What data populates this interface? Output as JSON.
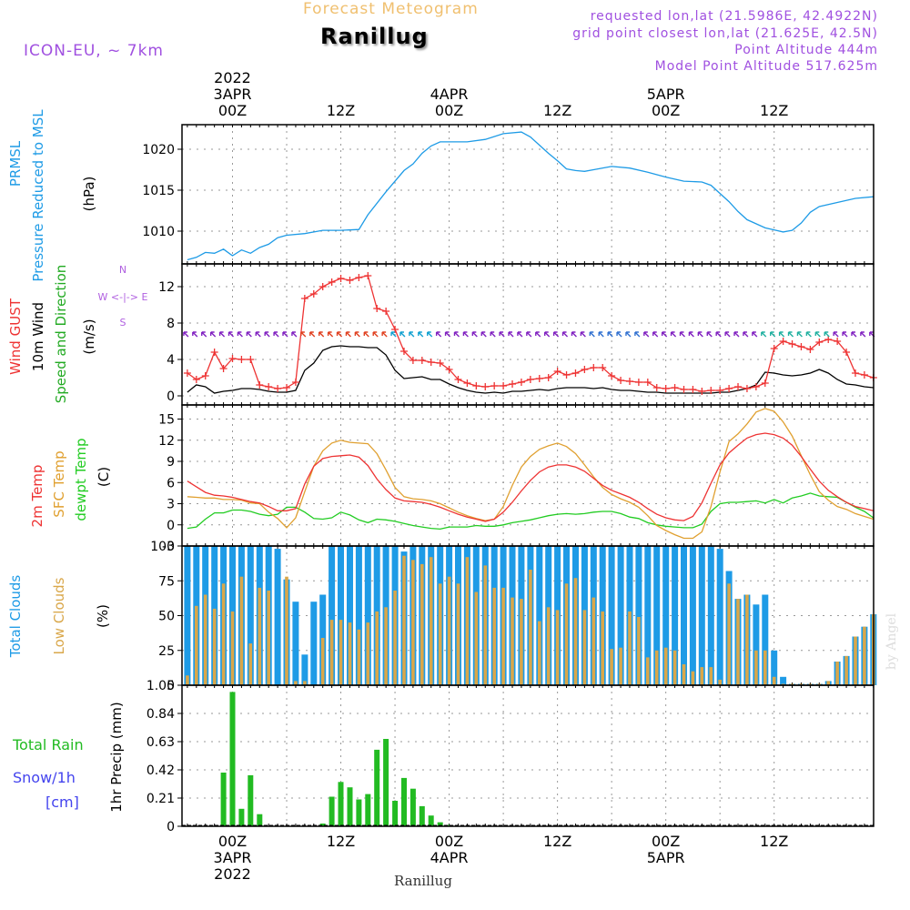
{
  "header": {
    "subtitle": "Forecast Meteogram",
    "title": "Ranillug",
    "model": "ICON-EU, ~ 7km",
    "requested": "requested lon,lat (21.5986E, 42.4922N)",
    "gridpoint": "grid point closest lon,lat (21.625E, 42.5N)",
    "point_alt": "Point Altitude 444m",
    "model_alt": "Model Point Altitude 517.625m",
    "bottom_title": "Ranillug",
    "watermark": "by Angel"
  },
  "time_axis": {
    "top_labels": [
      {
        "h": 0,
        "lines": [
          "2022",
          "3APR",
          "00Z"
        ]
      },
      {
        "h": 12,
        "lines": [
          "12Z"
        ]
      },
      {
        "h": 24,
        "lines": [
          "4APR",
          "00Z"
        ]
      },
      {
        "h": 36,
        "lines": [
          "12Z"
        ]
      },
      {
        "h": 48,
        "lines": [
          "5APR",
          "00Z"
        ]
      },
      {
        "h": 60,
        "lines": [
          "12Z"
        ]
      }
    ],
    "bottom_labels": [
      {
        "h": 0,
        "lines": [
          "00Z",
          "3APR",
          "2022"
        ]
      },
      {
        "h": 12,
        "lines": [
          "12Z"
        ]
      },
      {
        "h": 24,
        "lines": [
          "00Z",
          "4APR"
        ]
      },
      {
        "h": 36,
        "lines": [
          "12Z"
        ]
      },
      {
        "h": 48,
        "lines": [
          "00Z",
          "5APR"
        ]
      },
      {
        "h": 60,
        "lines": [
          "12Z"
        ]
      }
    ]
  },
  "colors": {
    "pressure": "#1e9be6",
    "gust": "#ee3333",
    "wind": "#000000",
    "dir_label": "#22aa22",
    "temp2m": "#ee3333",
    "sfc": "#e0a030",
    "dewpt": "#22cc22",
    "cloud_total": "#1e9be6",
    "cloud_low": "#d9a74a",
    "rain": "#22bb22",
    "snow": "#4444ee",
    "compass": "#b060e0",
    "header_purple": "#a050e0",
    "header_orange": "#f0c070"
  },
  "panels": {
    "pressure": {
      "labels": [
        "PRMSL",
        "Pressure Reduced to MSL"
      ],
      "unit": "(hPa)"
    },
    "wind": {
      "labels": [
        "Wind GUST",
        "10m Wind",
        "Speed and Direction"
      ],
      "unit": "(m/s)",
      "compass": [
        "N",
        "W <-|-> E",
        "S"
      ]
    },
    "temp": {
      "labels": [
        "2m Temp",
        "SFC Temp",
        "dewpt Temp"
      ],
      "unit": "(C)"
    },
    "clouds": {
      "labels": [
        "Total Clouds",
        "Low Clouds"
      ],
      "unit": "(%)"
    },
    "precip": {
      "labels": [
        "Total  Rain",
        "Snow/1h",
        "[cm]"
      ],
      "ylabel": "1hr Precip (mm)"
    }
  },
  "chart_data": [
    {
      "type": "line",
      "name": "pressure",
      "x_hours": [
        -5,
        -4,
        -3,
        -2,
        -1,
        0,
        1,
        2,
        3,
        4,
        5,
        6,
        8,
        10,
        12,
        14,
        15,
        17,
        19,
        20,
        21,
        22,
        23,
        24,
        26,
        28,
        30,
        32,
        33,
        35,
        36,
        37,
        38,
        39,
        40,
        42,
        44,
        46,
        48,
        50,
        52,
        53,
        55,
        56,
        57,
        59,
        61,
        62,
        63,
        64,
        65,
        67,
        69,
        71
      ],
      "y": [
        1006.5,
        1006.8,
        1007.4,
        1007.3,
        1007.8,
        1007.0,
        1007.7,
        1007.3,
        1008.0,
        1008.4,
        1009.2,
        1009.5,
        1009.7,
        1010.1,
        1010.1,
        1010.2,
        1012.0,
        1014.8,
        1017.4,
        1018.2,
        1019.5,
        1020.4,
        1020.9,
        1020.9,
        1020.9,
        1021.2,
        1021.9,
        1022.1,
        1021.5,
        1019.5,
        1018.6,
        1017.6,
        1017.4,
        1017.3,
        1017.5,
        1017.9,
        1017.7,
        1017.2,
        1016.6,
        1016.1,
        1016.0,
        1015.6,
        1013.6,
        1012.4,
        1011.4,
        1010.4,
        1009.9,
        1010.1,
        1011.0,
        1012.3,
        1013.0,
        1013.5,
        1014.0,
        1014.2
      ],
      "ylim": [
        1006,
        1023
      ],
      "yticks": [
        1010,
        1015,
        1020
      ]
    },
    {
      "type": "line",
      "name": "wind",
      "x_hours": [
        -5,
        -4,
        -3,
        -2,
        -1,
        0,
        1,
        2,
        3,
        4,
        5,
        6,
        7,
        8,
        9,
        10,
        11,
        12,
        13,
        14,
        15,
        16,
        17,
        18,
        19,
        20,
        21,
        22,
        23,
        24,
        25,
        26,
        27,
        28,
        29,
        30,
        31,
        32,
        33,
        34,
        35,
        36,
        37,
        38,
        39,
        40,
        41,
        42,
        43,
        44,
        45,
        46,
        47,
        48,
        49,
        50,
        51,
        52,
        53,
        54,
        55,
        56,
        57,
        58,
        59,
        60,
        61,
        62,
        63,
        64,
        65,
        66,
        67,
        68,
        69,
        70,
        71
      ],
      "series": [
        {
          "name": "Wind GUST",
          "values": [
            2.5,
            1.8,
            2.2,
            4.8,
            3.0,
            4.1,
            4.0,
            4.0,
            1.2,
            1.0,
            0.8,
            0.9,
            1.5,
            10.7,
            11.2,
            12.0,
            12.5,
            12.9,
            12.7,
            13.0,
            13.2,
            9.6,
            9.3,
            7.3,
            4.9,
            3.9,
            3.9,
            3.7,
            3.6,
            2.9,
            1.8,
            1.4,
            1.1,
            1.0,
            1.1,
            1.1,
            1.3,
            1.5,
            1.8,
            1.9,
            2.0,
            2.7,
            2.3,
            2.5,
            2.9,
            3.1,
            3.1,
            2.2,
            1.7,
            1.6,
            1.5,
            1.5,
            0.9,
            0.8,
            0.9,
            0.7,
            0.7,
            0.5,
            0.6,
            0.6,
            0.8,
            1.0,
            0.8,
            1.0,
            1.4,
            5.2,
            6.0,
            5.7,
            5.4,
            5.1,
            5.9,
            6.2,
            6.0,
            4.8,
            2.5,
            2.3,
            2.0
          ]
        },
        {
          "name": "10m Wind",
          "values": [
            0.4,
            1.2,
            1.0,
            0.3,
            0.5,
            0.6,
            0.8,
            0.8,
            0.7,
            0.5,
            0.4,
            0.4,
            0.6,
            2.8,
            3.6,
            5.0,
            5.4,
            5.5,
            5.4,
            5.4,
            5.3,
            5.3,
            4.5,
            2.8,
            1.9,
            2.0,
            2.1,
            1.8,
            1.8,
            1.3,
            0.9,
            0.6,
            0.4,
            0.3,
            0.4,
            0.3,
            0.5,
            0.5,
            0.6,
            0.7,
            0.6,
            0.8,
            0.9,
            0.9,
            0.9,
            0.8,
            0.9,
            0.7,
            0.6,
            0.6,
            0.5,
            0.4,
            0.4,
            0.3,
            0.3,
            0.3,
            0.3,
            0.3,
            0.3,
            0.4,
            0.4,
            0.6,
            0.8,
            1.2,
            2.6,
            2.5,
            2.3,
            2.2,
            2.3,
            2.5,
            2.9,
            2.5,
            1.8,
            1.3,
            1.2,
            1.0,
            0.9
          ]
        }
      ],
      "ylim": [
        -1,
        14.5
      ],
      "yticks": [
        0,
        4,
        8,
        12
      ]
    },
    {
      "type": "line",
      "name": "temperature",
      "x_hours": [
        -5,
        -4,
        -3,
        -2,
        -1,
        0,
        1,
        2,
        3,
        4,
        5,
        6,
        7,
        8,
        9,
        10,
        11,
        12,
        13,
        14,
        15,
        16,
        17,
        18,
        19,
        20,
        21,
        22,
        23,
        24,
        25,
        26,
        27,
        28,
        29,
        30,
        31,
        32,
        33,
        34,
        35,
        36,
        37,
        38,
        39,
        40,
        41,
        42,
        43,
        44,
        45,
        46,
        47,
        48,
        49,
        50,
        51,
        52,
        53,
        54,
        55,
        56,
        57,
        58,
        59,
        60,
        61,
        62,
        63,
        64,
        65,
        66,
        67,
        68,
        69,
        70,
        71
      ],
      "series": [
        {
          "name": "2m Temp",
          "values": [
            6.2,
            5.4,
            4.6,
            4.2,
            4.1,
            3.9,
            3.6,
            3.3,
            3.1,
            2.6,
            2.0,
            2.0,
            2.3,
            5.8,
            8.3,
            9.4,
            9.7,
            9.8,
            9.9,
            9.6,
            8.4,
            6.5,
            5.0,
            3.8,
            3.4,
            3.3,
            3.2,
            2.9,
            2.5,
            2.0,
            1.5,
            1.1,
            0.8,
            0.5,
            0.8,
            1.8,
            3.2,
            4.8,
            6.3,
            7.5,
            8.2,
            8.5,
            8.5,
            8.2,
            7.6,
            6.6,
            5.6,
            4.9,
            4.4,
            3.9,
            3.2,
            2.3,
            1.5,
            1.0,
            0.7,
            0.6,
            1.2,
            3.1,
            5.9,
            8.5,
            10.2,
            11.3,
            12.3,
            12.8,
            13.0,
            12.8,
            12.3,
            11.3,
            9.7,
            7.9,
            6.2,
            4.9,
            4.0,
            3.2,
            2.6,
            2.3,
            2.0
          ]
        },
        {
          "name": "SFC Temp",
          "values": [
            4.0,
            3.9,
            3.8,
            3.8,
            3.6,
            3.6,
            3.5,
            3.1,
            3.0,
            1.8,
            0.9,
            -0.4,
            1.0,
            4.7,
            8.3,
            10.5,
            11.6,
            12.0,
            11.7,
            11.6,
            11.5,
            10.1,
            7.8,
            5.3,
            4.0,
            3.7,
            3.6,
            3.4,
            3.0,
            2.4,
            1.8,
            1.3,
            0.9,
            0.6,
            0.8,
            2.6,
            5.6,
            8.2,
            9.7,
            10.7,
            11.2,
            11.6,
            11.1,
            10.1,
            8.5,
            6.8,
            5.3,
            4.3,
            3.7,
            3.2,
            2.5,
            1.3,
            -0.1,
            -0.8,
            -1.4,
            -1.9,
            -1.9,
            -1.0,
            2.6,
            7.5,
            11.8,
            12.9,
            14.3,
            16.0,
            16.5,
            16.1,
            14.6,
            12.6,
            9.8,
            7.1,
            4.7,
            3.5,
            2.6,
            2.2,
            1.6,
            1.2,
            0.8
          ]
        },
        {
          "name": "dewpt Temp",
          "values": [
            -0.5,
            -0.3,
            0.8,
            1.7,
            1.7,
            2.1,
            2.1,
            1.9,
            1.5,
            1.3,
            1.5,
            2.5,
            2.5,
            1.8,
            0.9,
            0.8,
            1.0,
            1.8,
            1.4,
            0.7,
            0.3,
            0.8,
            0.7,
            0.5,
            0.2,
            -0.1,
            -0.3,
            -0.5,
            -0.6,
            -0.3,
            -0.3,
            -0.3,
            -0.1,
            -0.2,
            -0.2,
            0.0,
            0.3,
            0.5,
            0.7,
            1.0,
            1.3,
            1.5,
            1.6,
            1.5,
            1.6,
            1.8,
            1.9,
            1.9,
            1.6,
            1.1,
            0.9,
            0.3,
            0.0,
            -0.2,
            -0.3,
            -0.4,
            -0.4,
            0.1,
            1.9,
            3.0,
            3.2,
            3.2,
            3.3,
            3.4,
            3.1,
            3.6,
            3.1,
            3.8,
            4.1,
            4.5,
            4.1,
            4.0,
            3.9,
            3.2,
            2.5,
            1.9,
            1.0
          ]
        }
      ],
      "ylim": [
        -3,
        17
      ],
      "yticks": [
        -3,
        0,
        3,
        6,
        9,
        12,
        15
      ]
    },
    {
      "type": "bar",
      "name": "clouds",
      "x_hours": [
        -5,
        -4,
        -3,
        -2,
        -1,
        0,
        1,
        2,
        3,
        4,
        5,
        6,
        7,
        8,
        9,
        10,
        11,
        12,
        13,
        14,
        15,
        16,
        17,
        18,
        19,
        20,
        21,
        22,
        23,
        24,
        25,
        26,
        27,
        28,
        29,
        30,
        31,
        32,
        33,
        34,
        35,
        36,
        37,
        38,
        39,
        40,
        41,
        42,
        43,
        44,
        45,
        46,
        47,
        48,
        49,
        50,
        51,
        52,
        53,
        54,
        55,
        56,
        57,
        58,
        59,
        60,
        61,
        62,
        63,
        64,
        65,
        66,
        67,
        68,
        69,
        70,
        71
      ],
      "series": [
        {
          "name": "Total Clouds",
          "values": [
            100,
            100,
            100,
            100,
            100,
            100,
            100,
            100,
            100,
            100,
            98,
            76,
            60,
            22,
            60,
            65,
            100,
            100,
            100,
            100,
            100,
            100,
            100,
            100,
            96,
            100,
            100,
            100,
            100,
            100,
            100,
            100,
            100,
            100,
            100,
            100,
            100,
            100,
            100,
            100,
            100,
            100,
            100,
            100,
            100,
            100,
            100,
            100,
            100,
            100,
            100,
            100,
            100,
            100,
            100,
            100,
            100,
            100,
            100,
            98,
            82,
            62,
            65,
            58,
            65,
            25,
            6,
            1,
            1,
            1,
            1,
            3,
            17,
            21,
            35,
            42,
            51
          ]
        },
        {
          "name": "Low Clouds",
          "values": [
            7,
            57,
            65,
            55,
            73,
            53,
            78,
            30,
            70,
            68,
            0,
            78,
            3,
            3,
            0,
            34,
            47,
            47,
            45,
            40,
            45,
            53,
            56,
            68,
            93,
            90,
            87,
            92,
            73,
            78,
            73,
            92,
            67,
            86,
            70,
            70,
            63,
            62,
            83,
            46,
            56,
            54,
            73,
            77,
            54,
            63,
            53,
            26,
            27,
            53,
            49,
            20,
            25,
            27,
            25,
            15,
            10,
            13,
            13,
            4,
            73,
            62,
            65,
            25,
            25,
            6,
            1,
            1,
            1,
            1,
            1,
            3,
            17,
            21,
            35,
            42,
            51
          ]
        }
      ],
      "ylim": [
        0,
        100
      ],
      "yticks": [
        0,
        25,
        50,
        75,
        100
      ]
    },
    {
      "type": "bar",
      "name": "precipitation",
      "x_hours": [
        -1,
        0,
        1,
        2,
        3,
        4,
        10,
        11,
        12,
        13,
        14,
        15,
        16,
        17,
        18,
        19,
        20,
        21,
        22,
        23,
        24
      ],
      "series": [
        {
          "name": "Total Rain",
          "values": [
            0.4,
            1.0,
            0.13,
            0.38,
            0.09,
            0.0,
            0.02,
            0.22,
            0.33,
            0.29,
            0.2,
            0.24,
            0.57,
            0.65,
            0.19,
            0.36,
            0.28,
            0.15,
            0.08,
            0.03,
            0.01
          ]
        }
      ],
      "ylim": [
        0,
        1.05
      ],
      "yticks": [
        0,
        0.21,
        0.42,
        0.63,
        0.84,
        1.05
      ]
    }
  ]
}
